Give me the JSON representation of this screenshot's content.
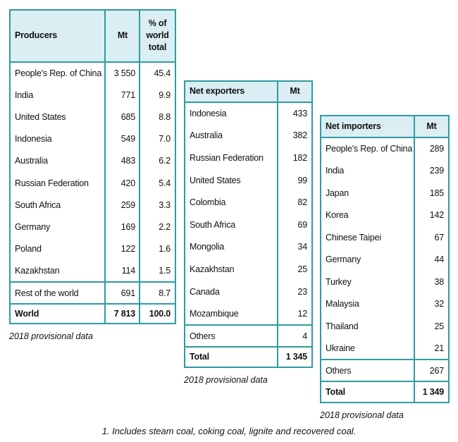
{
  "tables": [
    {
      "headers": [
        "Producers",
        "Mt",
        "% of world total"
      ],
      "rows": [
        [
          "People's Rep. of China",
          "3 550",
          "45.4"
        ],
        [
          "India",
          "771",
          "9.9"
        ],
        [
          "United States",
          "685",
          "8.8"
        ],
        [
          "Indonesia",
          "549",
          "7.0"
        ],
        [
          "Australia",
          "483",
          "6.2"
        ],
        [
          "Russian Federation",
          "420",
          "5.4"
        ],
        [
          "South Africa",
          "259",
          "3.3"
        ],
        [
          "Germany",
          "169",
          "2.2"
        ],
        [
          "Poland",
          "122",
          "1.6"
        ],
        [
          "Kazakhstan",
          "114",
          "1.5"
        ]
      ],
      "extra": [
        "Rest of the world",
        "691",
        "8.7"
      ],
      "total": [
        "World",
        "7 813",
        "100.0"
      ],
      "note": "2018 provisional data"
    },
    {
      "headers": [
        "Net exporters",
        "Mt"
      ],
      "rows": [
        [
          "Indonesia",
          "433"
        ],
        [
          "Australia",
          "382"
        ],
        [
          "Russian Federation",
          "182"
        ],
        [
          "United States",
          "99"
        ],
        [
          "Colombia",
          "82"
        ],
        [
          "South Africa",
          "69"
        ],
        [
          "Mongolia",
          "34"
        ],
        [
          "Kazakhstan",
          "25"
        ],
        [
          "Canada",
          "23"
        ],
        [
          "Mozambique",
          "12"
        ]
      ],
      "extra": [
        "Others",
        "4"
      ],
      "total": [
        "Total",
        "1 345"
      ],
      "note": "2018 provisional data"
    },
    {
      "headers": [
        "Net importers",
        "Mt"
      ],
      "rows": [
        [
          "People's Rep. of China",
          "289"
        ],
        [
          "India",
          "239"
        ],
        [
          "Japan",
          "185"
        ],
        [
          "Korea",
          "142"
        ],
        [
          "Chinese Taipei",
          "67"
        ],
        [
          "Germany",
          "44"
        ],
        [
          "Turkey",
          "38"
        ],
        [
          "Malaysia",
          "32"
        ],
        [
          "Thailand",
          "25"
        ],
        [
          "Ukraine",
          "21"
        ]
      ],
      "extra": [
        "Others",
        "267"
      ],
      "total": [
        "Total",
        "1 349"
      ],
      "note": "2018 provisional data"
    }
  ],
  "footnote": "1. Includes steam coal, coking coal, lignite and recovered coal."
}
